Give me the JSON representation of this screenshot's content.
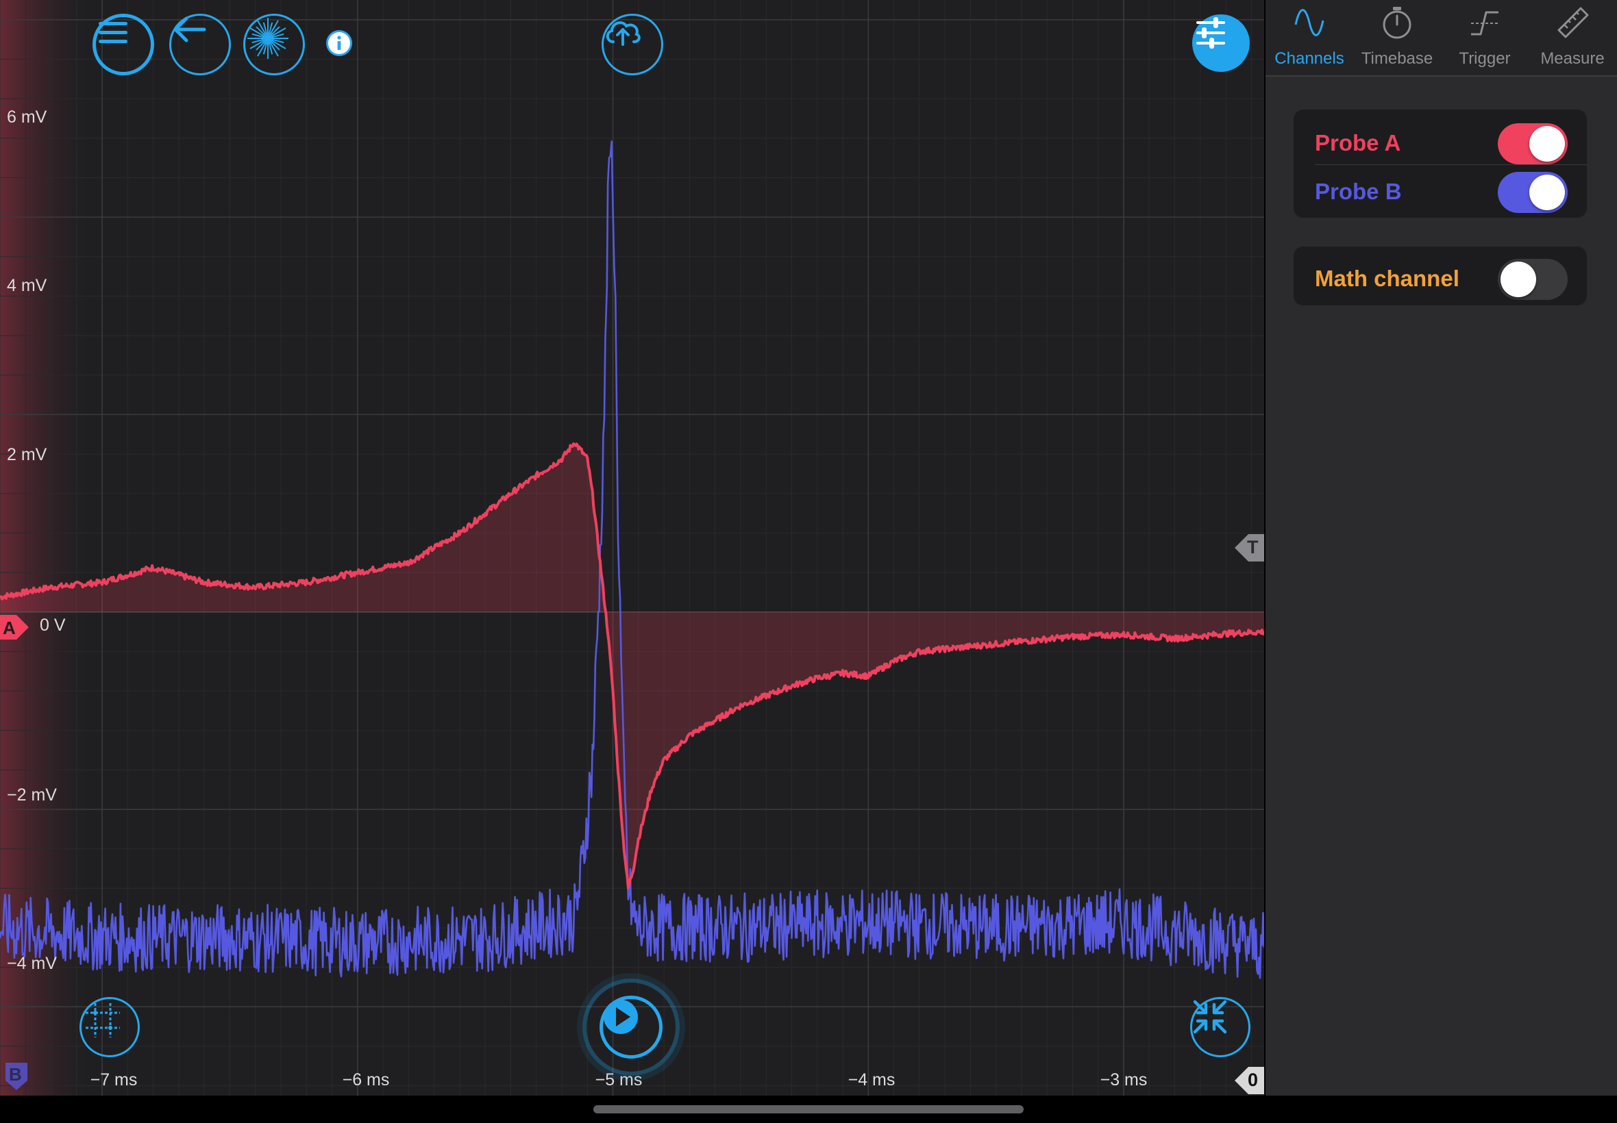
{
  "scope": {
    "y_axis_labels": [
      "6 mV",
      "4 mV",
      "2 mV",
      "0 V",
      "−2 mV",
      "−4 mV"
    ],
    "x_axis_labels": [
      "−7 ms",
      "−6 ms",
      "−5 ms",
      "−4 ms",
      "−3 ms"
    ],
    "channel_markers": {
      "a": "A",
      "b": "B",
      "trigger": "T",
      "zero": "0"
    },
    "colors": {
      "probe_a": "#f0415f",
      "probe_b": "#5659e0",
      "math": "#f1a23a",
      "accent": "#22a5ec"
    }
  },
  "toolbar": {
    "menu_icon": "hamburger-menu-icon",
    "back_icon": "arrow-left-icon",
    "light_icon": "sunburst-icon",
    "info_icon": "info-icon",
    "upload_icon": "cloud-upload-icon",
    "settings_icon": "sliders-icon",
    "cursors_icon": "grid-cursor-icon",
    "play_icon": "play-icon",
    "collapse_icon": "arrows-collapse-icon"
  },
  "panel": {
    "tabs": [
      {
        "label": "Channels",
        "icon": "sine-wave-icon",
        "active": true
      },
      {
        "label": "Timebase",
        "icon": "stopwatch-icon",
        "active": false
      },
      {
        "label": "Trigger",
        "icon": "trigger-edge-icon",
        "active": false
      },
      {
        "label": "Measure",
        "icon": "ruler-icon",
        "active": false
      }
    ],
    "channels": [
      {
        "label": "Probe A",
        "enabled": true,
        "color": "#f0415f"
      },
      {
        "label": "Probe B",
        "enabled": true,
        "color": "#5659e0"
      }
    ],
    "math": {
      "label": "Math channel",
      "enabled": false,
      "color": "#f1a23a"
    }
  },
  "chart_data": {
    "type": "line",
    "x_unit": "ms",
    "y_unit": "mV",
    "xlim": [
      -7.4,
      -2.45
    ],
    "ylim": [
      -4.9,
      6.2
    ],
    "x_ticks": [
      -7,
      -6,
      -5,
      -4,
      -3
    ],
    "y_ticks": [
      6,
      4,
      2,
      0,
      -2,
      -4
    ],
    "grid": true,
    "series": [
      {
        "name": "Probe A",
        "color": "#f0415f",
        "x": [
          -7.4,
          -7.2,
          -7.0,
          -6.8,
          -6.6,
          -6.4,
          -6.2,
          -6.0,
          -5.8,
          -5.6,
          -5.5,
          -5.4,
          -5.3,
          -5.2,
          -5.15,
          -5.1,
          -5.08,
          -5.05,
          -5.02,
          -5.0,
          -4.98,
          -4.96,
          -4.94,
          -4.92,
          -4.9,
          -4.85,
          -4.8,
          -4.7,
          -4.6,
          -4.5,
          -4.4,
          -4.3,
          -4.2,
          -4.1,
          -4.0,
          -3.9,
          -3.8,
          -3.6,
          -3.4,
          -3.2,
          -3.0,
          -2.8,
          -2.6,
          -2.45
        ],
        "y": [
          0.15,
          0.25,
          0.3,
          0.45,
          0.3,
          0.25,
          0.3,
          0.4,
          0.5,
          0.8,
          1.0,
          1.2,
          1.38,
          1.55,
          1.72,
          1.55,
          1.2,
          0.5,
          -0.2,
          -0.8,
          -1.6,
          -2.3,
          -2.8,
          -2.6,
          -2.3,
          -1.8,
          -1.5,
          -1.25,
          -1.1,
          -0.95,
          -0.85,
          -0.75,
          -0.67,
          -0.62,
          -0.65,
          -0.5,
          -0.4,
          -0.35,
          -0.3,
          -0.25,
          -0.23,
          -0.27,
          -0.22,
          -0.2
        ]
      },
      {
        "name": "Probe B",
        "color": "#5659e0",
        "x": [
          -7.4,
          -7.0,
          -6.5,
          -6.0,
          -5.5,
          -5.15,
          -5.12,
          -5.08,
          -5.05,
          -5.03,
          -5.02,
          -5.01,
          -5.0,
          -4.99,
          -4.98,
          -4.96,
          -4.94,
          -4.92,
          -4.9,
          -4.5,
          -4.0,
          -3.5,
          -3.0,
          -2.45
        ],
        "y": [
          -3.2,
          -3.3,
          -3.3,
          -3.35,
          -3.3,
          -3.1,
          -2.6,
          -1.5,
          0.5,
          2.5,
          4.0,
          4.7,
          4.4,
          3.0,
          1.0,
          -1.5,
          -2.8,
          -3.1,
          -3.2,
          -3.2,
          -3.15,
          -3.2,
          -3.15,
          -3.4
        ]
      }
    ]
  }
}
